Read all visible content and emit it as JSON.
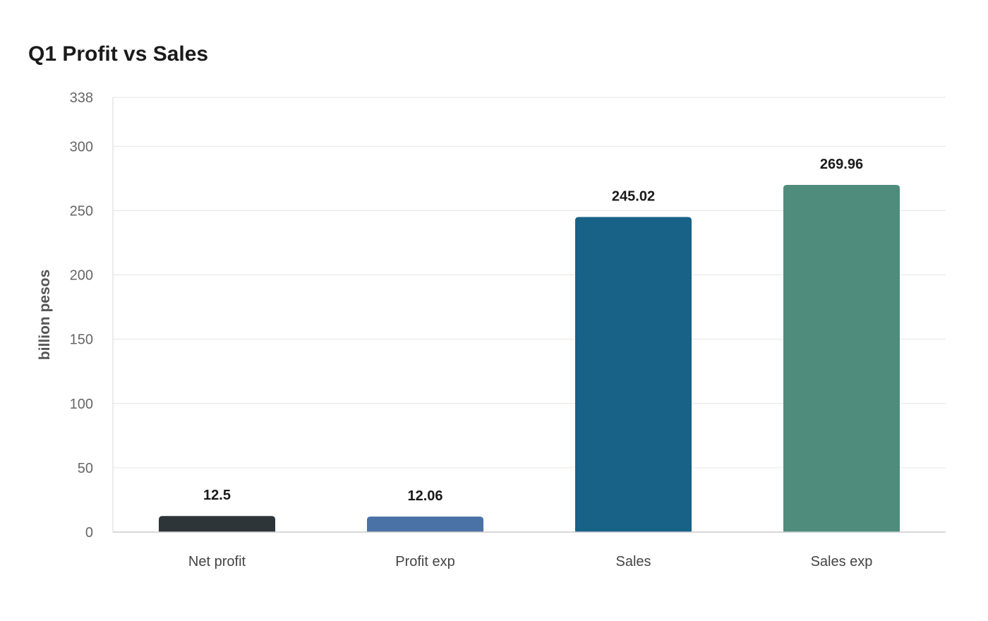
{
  "chart_data": {
    "type": "bar",
    "title": "Q1 Profit vs Sales",
    "xlabel": "",
    "ylabel": "billion pesos",
    "categories": [
      "Net profit",
      "Profit exp",
      "Sales",
      "Sales exp"
    ],
    "values": [
      12.5,
      12.06,
      245.02,
      269.96
    ],
    "value_labels": [
      "12.5",
      "12.06",
      "245.02",
      "269.96"
    ],
    "colors": [
      "#2d3538",
      "#4a72a6",
      "#186288",
      "#4f8c7b"
    ],
    "ylim": [
      0,
      338
    ],
    "yticks": [
      0,
      50,
      100,
      150,
      200,
      250,
      300,
      338
    ],
    "grid": true,
    "legend": "none"
  }
}
